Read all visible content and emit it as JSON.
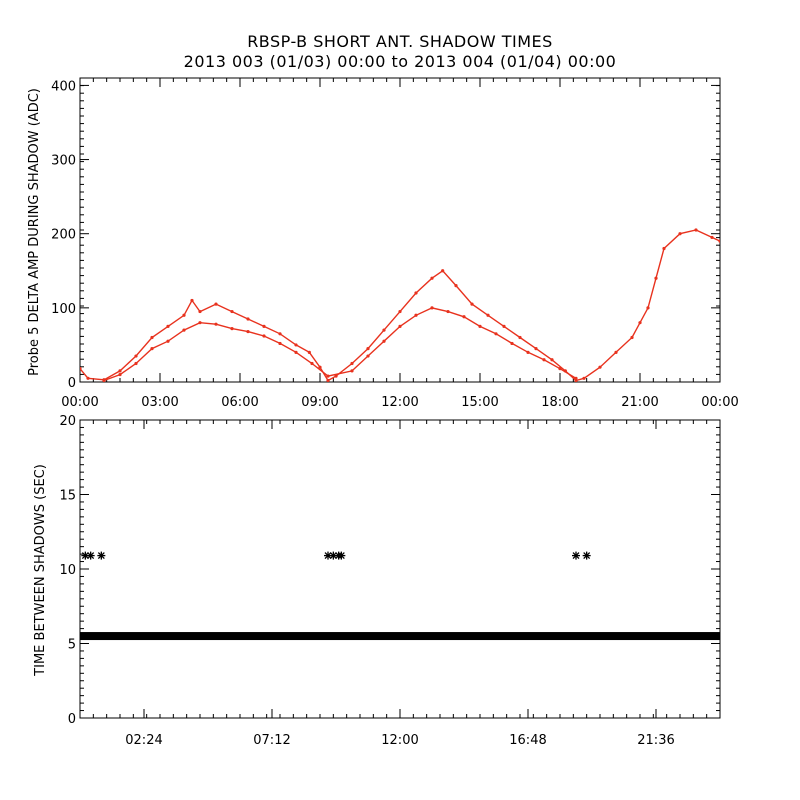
{
  "title": "RBSP-B SHORT ANT. SHADOW TIMES",
  "subtitle": "2013 003 (01/03) 00:00 to 2013 004 (01/04) 00:00",
  "colors": {
    "series_top": "#e8321e",
    "series_bottom": "#000000"
  },
  "chart_data": [
    {
      "type": "scatter",
      "ylabel": "Probe 5 DELTA AMP DURING SHADOW (ADC)",
      "xlabel": "",
      "x_unit": "hours",
      "xlim": [
        0,
        24
      ],
      "ylim": [
        0,
        410
      ],
      "xticks": [
        0,
        3,
        6,
        9,
        12,
        15,
        18,
        21,
        24
      ],
      "xtick_labels": [
        "00:00",
        "03:00",
        "06:00",
        "09:00",
        "12:00",
        "15:00",
        "18:00",
        "21:00",
        "00:00"
      ],
      "yticks": [
        0,
        100,
        200,
        300,
        400
      ],
      "ytick_labels": [
        "0",
        "100",
        "200",
        "300",
        "400"
      ],
      "grid": false,
      "series": [
        {
          "color": "#e8321e",
          "x": [
            0,
            0.3,
            0.9,
            1.5,
            2.1,
            2.7,
            3.3,
            3.9,
            4.2,
            4.5,
            5.1,
            5.7,
            6.3,
            6.9,
            7.5,
            8.1,
            8.6,
            9.0,
            9.3,
            9.6,
            10.2,
            10.8,
            11.4,
            12.0,
            12.6,
            13.2,
            13.6,
            14.1,
            14.7,
            15.3,
            15.9,
            16.5,
            17.1,
            17.7,
            18.2,
            18.6,
            18.9,
            19.5,
            20.1,
            20.7,
            21.0,
            21.3,
            21.6,
            21.9,
            22.5,
            23.1,
            23.7,
            24.0
          ],
          "y": [
            18,
            5,
            3,
            15,
            35,
            60,
            75,
            90,
            110,
            95,
            105,
            95,
            85,
            75,
            65,
            50,
            40,
            20,
            2,
            8,
            25,
            45,
            70,
            95,
            120,
            140,
            150,
            130,
            105,
            90,
            75,
            60,
            45,
            30,
            15,
            2,
            5,
            20,
            40,
            60,
            80,
            100,
            140,
            180,
            200,
            205,
            195,
            190
          ]
        },
        {
          "color": "#e8321e",
          "x": [
            0.9,
            1.5,
            2.1,
            2.7,
            3.3,
            3.9,
            4.5,
            5.1,
            5.7,
            6.3,
            6.9,
            7.5,
            8.1,
            8.7,
            9.3,
            10.2,
            10.8,
            11.4,
            12.0,
            12.6,
            13.2,
            13.8,
            14.4,
            15.0,
            15.6,
            16.2,
            16.8,
            17.4,
            18.0,
            18.6
          ],
          "y": [
            2,
            10,
            25,
            45,
            55,
            70,
            80,
            78,
            72,
            68,
            62,
            52,
            40,
            25,
            8,
            15,
            35,
            55,
            75,
            90,
            100,
            95,
            88,
            75,
            65,
            52,
            40,
            30,
            18,
            5
          ]
        }
      ]
    },
    {
      "type": "scatter",
      "ylabel": "TIME BETWEEN SHADOWS (SEC)",
      "xlabel": "",
      "x_unit": "hours",
      "xlim": [
        0,
        24
      ],
      "ylim": [
        0,
        20
      ],
      "xticks": [
        2.4,
        7.2,
        12.0,
        16.8,
        21.6
      ],
      "xtick_labels": [
        "02:24",
        "07:12",
        "12:00",
        "16:48",
        "21:36"
      ],
      "yticks": [
        0,
        5,
        10,
        15,
        20
      ],
      "ytick_labels": [
        "0",
        "5",
        "10",
        "15",
        "20"
      ],
      "grid": false,
      "marker": "asterisk",
      "series": [
        {
          "color": "#000000",
          "x": [
            0.2,
            0.4,
            0.8,
            9.3,
            9.5,
            9.7,
            9.8,
            18.6,
            19.0
          ],
          "y": [
            10.9,
            10.9,
            10.9,
            10.9,
            10.9,
            10.9,
            10.9,
            10.9,
            10.9
          ]
        },
        {
          "color": "#000000",
          "x_range": [
            0,
            24
          ],
          "y": 5.5
        }
      ]
    }
  ]
}
